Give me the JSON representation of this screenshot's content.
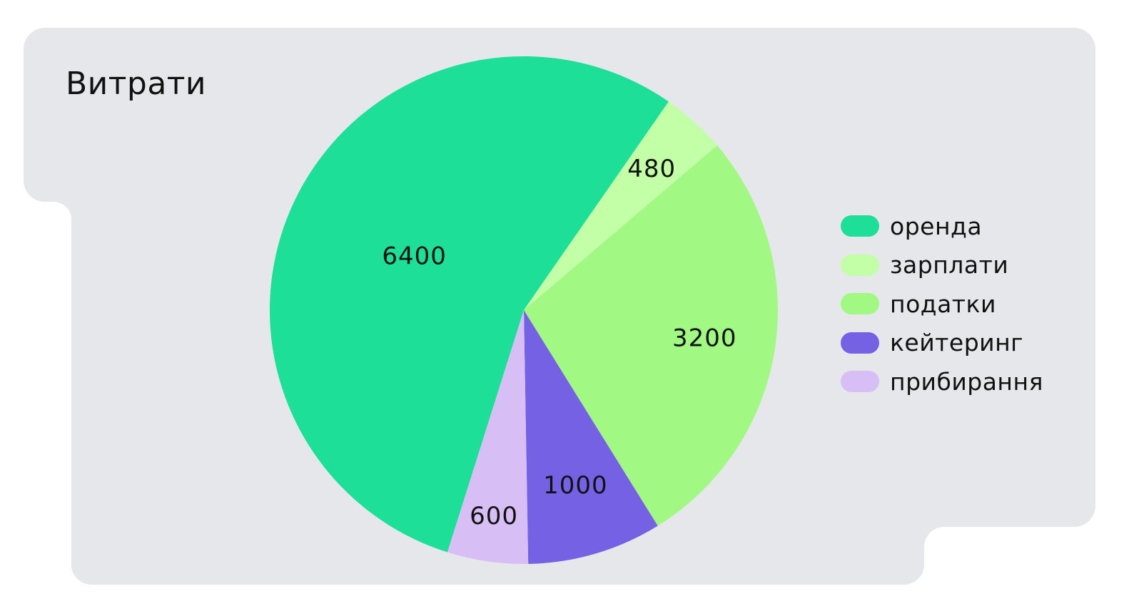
{
  "colors": {
    "card_background": "#E6E7EA",
    "page_background": "#FFFFFF",
    "text": "#111111"
  },
  "chart_data": {
    "type": "pie",
    "title": "Витрати",
    "categories": [
      "оренда",
      "зарплати",
      "податки",
      "кейтеринг",
      "прибирання"
    ],
    "values": [
      6400,
      480,
      3200,
      1000,
      600
    ],
    "data_labels": [
      "6400",
      "480",
      "3200",
      "1000",
      "600"
    ],
    "colors": [
      "#1DDF97",
      "#C2FFA6",
      "#A1F984",
      "#7461E3",
      "#D7BFF6"
    ],
    "legend_position": "right"
  }
}
